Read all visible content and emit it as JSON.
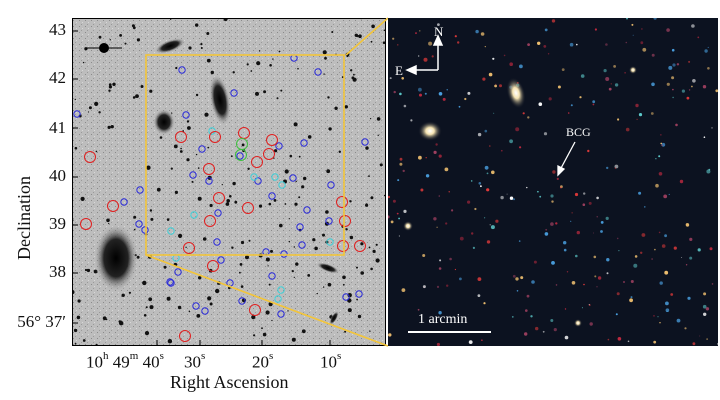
{
  "axes": {
    "ylabel": "Declination",
    "xlabel": "Right Ascension",
    "dec_ticks": [
      "43",
      "42",
      "41",
      "40",
      "39",
      "38",
      "56° 37′"
    ],
    "ra_ticks": [
      {
        "h": "10",
        "h_unit": "h",
        "m": "49",
        "m_unit": "m",
        "s": "40",
        "s_unit": "s"
      },
      {
        "s": "30",
        "s_unit": "s"
      },
      {
        "s": "20",
        "s_unit": "s"
      },
      {
        "s": "10",
        "s_unit": "s"
      }
    ]
  },
  "right_panel": {
    "compass_n": "N",
    "compass_e": "E",
    "bcg_label": "BCG",
    "scale_label": "1 arcmin"
  },
  "colors": {
    "zoom_box": "#f3c53a",
    "red_marker": "#e02020",
    "blue_marker": "#2a2ad8",
    "cyan_marker": "#3fd0d8",
    "green_marker": "#40c040"
  }
}
